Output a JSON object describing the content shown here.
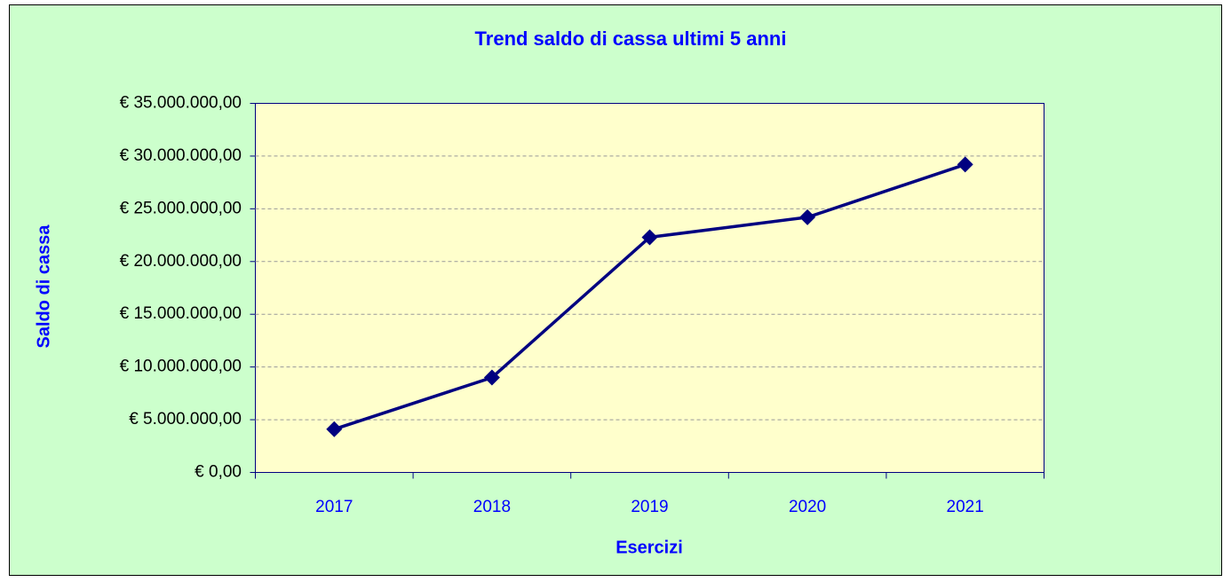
{
  "chart_data": {
    "type": "line",
    "title": "Trend saldo di cassa ultimi 5 anni",
    "x_label": "Esercizi",
    "y_label": "Saldo di cassa",
    "categories": [
      "2017",
      "2018",
      "2019",
      "2020",
      "2021"
    ],
    "series": [
      {
        "name": "Saldo di cassa",
        "color": "#000080",
        "values": [
          4100000,
          9000000,
          22300000,
          24200000,
          29200000
        ]
      }
    ],
    "ylim": [
      0,
      35000000
    ],
    "yticks": [
      {
        "value": 0,
        "label": "€ 0,00"
      },
      {
        "value": 5000000,
        "label": "€ 5.000.000,00"
      },
      {
        "value": 10000000,
        "label": "€ 10.000.000,00"
      },
      {
        "value": 15000000,
        "label": "€ 15.000.000,00"
      },
      {
        "value": 20000000,
        "label": "€ 20.000.000,00"
      },
      {
        "value": 25000000,
        "label": "€ 25.000.000,00"
      },
      {
        "value": 30000000,
        "label": "€ 30.000.000,00"
      },
      {
        "value": 35000000,
        "label": "€ 35.000.000,00"
      }
    ],
    "grid": true
  }
}
